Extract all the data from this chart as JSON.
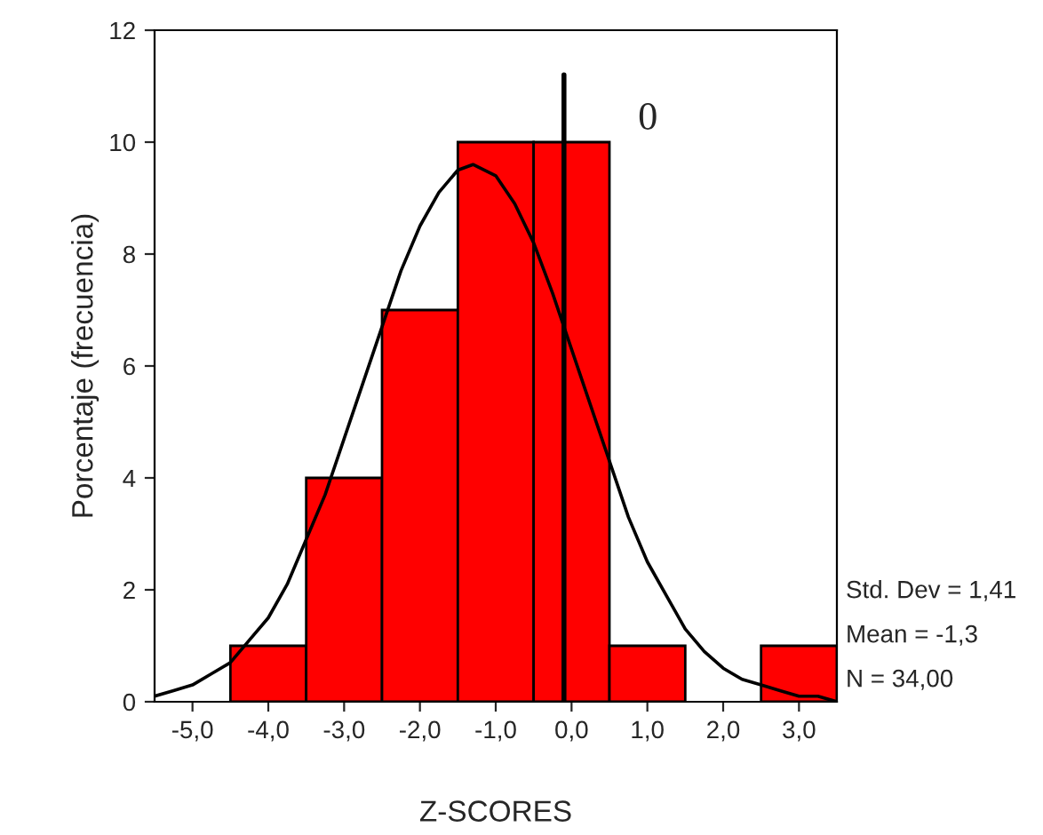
{
  "chart_data": {
    "type": "histogram",
    "xlabel": "Z-SCORES",
    "ylabel": "Porcentaje (frecuencia)",
    "bins": [
      -4.5,
      -3.5,
      -2.5,
      -1.5,
      -0.5,
      0.5,
      1.5,
      2.5,
      3.5
    ],
    "values": [
      1,
      4,
      7,
      10,
      10,
      1,
      0,
      1
    ],
    "color": "#ff0000",
    "series": [
      {
        "type": "line",
        "color": "#000000",
        "x": [
          -5.5,
          -5.25,
          -5.0,
          -4.75,
          -4.5,
          -4.25,
          -4.0,
          -3.75,
          -3.5,
          -3.25,
          -3.0,
          -2.75,
          -2.5,
          -2.25,
          -2.0,
          -1.75,
          -1.5,
          -1.3,
          -1.0,
          -0.75,
          -0.5,
          -0.25,
          0.0,
          0.25,
          0.5,
          0.75,
          1.0,
          1.25,
          1.5,
          1.75,
          2.0,
          2.25,
          2.5,
          2.75,
          3.0,
          3.25,
          3.5
        ],
        "values": [
          0.1,
          0.2,
          0.3,
          0.5,
          0.7,
          1.1,
          1.5,
          2.1,
          2.9,
          3.7,
          4.7,
          5.7,
          6.7,
          7.7,
          8.5,
          9.1,
          9.5,
          9.6,
          9.4,
          8.9,
          8.2,
          7.3,
          6.3,
          5.3,
          4.3,
          3.3,
          2.5,
          1.9,
          1.3,
          0.9,
          0.6,
          0.4,
          0.3,
          0.2,
          0.1,
          0.1,
          0.0
        ]
      },
      {
        "type": "line",
        "name": "0",
        "color": "#000000",
        "x": [
          -0.1,
          -0.1
        ],
        "values": [
          0,
          11.2
        ]
      }
    ],
    "annotations": [
      "Std. Dev = 1,41",
      "Mean = -1,3",
      "N = 34,00"
    ],
    "xlim": [
      -5.5,
      3.5
    ],
    "xticks": [
      {
        "value": -5,
        "label": "-5,0"
      },
      {
        "value": -4,
        "label": "-4,0"
      },
      {
        "value": -3,
        "label": "-3,0"
      },
      {
        "value": -2,
        "label": "-2,0"
      },
      {
        "value": -1,
        "label": "-1,0"
      },
      {
        "value": 0,
        "label": "0,0"
      },
      {
        "value": 1,
        "label": "1,0"
      },
      {
        "value": 2,
        "label": "2,0"
      },
      {
        "value": 3,
        "label": "3,0"
      }
    ],
    "ylim": [
      0,
      12
    ],
    "yticks": [
      0,
      2,
      4,
      6,
      8,
      10,
      12
    ],
    "grid": false,
    "legend": false
  }
}
